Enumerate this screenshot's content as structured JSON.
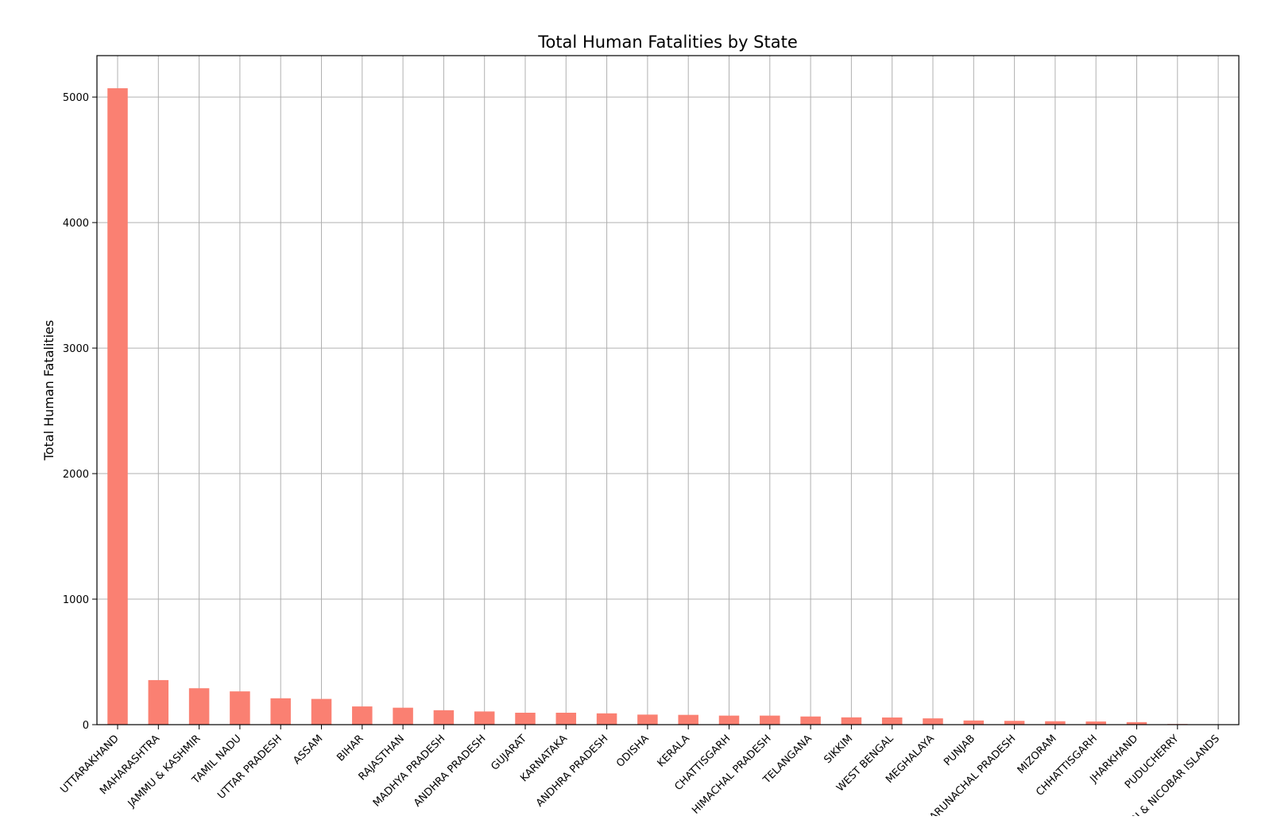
{
  "chart_data": {
    "type": "bar",
    "title": "Total Human Fatalities by State",
    "xlabel": "",
    "ylabel": "Total Human Fatalities",
    "ylim": [
      0,
      5330
    ],
    "yticks": [
      0,
      1000,
      2000,
      3000,
      4000,
      5000
    ],
    "grid": true,
    "bar_color": "#fa8072",
    "categories": [
      "UTTARAKHAND",
      "MAHARASHTRA",
      "JAMMU & KASHMIR",
      "TAMIL NADU",
      "UTTAR PRADESH",
      "ASSAM",
      "BIHAR",
      "RAJASTHAN",
      "MADHYA PRADESH",
      "ANDHRA PRADESH",
      "GUJARAT",
      "KARNATAKA",
      "ANDHRA  PRADESH",
      "ODISHA",
      "KERALA",
      "CHATTISGARH",
      "HIMACHAL PRADESH",
      "TELANGANA",
      "SIKKIM",
      "WEST BENGAL",
      "MEGHALAYA",
      "PUNJAB",
      "ARUNACHAL PRADESH",
      "MIZORAM",
      "CHHATTISGARH",
      "JHARKHAND",
      "PUDUCHERRY",
      "ANDAMAN & NICOBAR ISLANDS"
    ],
    "values": [
      5070,
      355,
      290,
      265,
      210,
      205,
      145,
      135,
      115,
      105,
      95,
      95,
      90,
      80,
      78,
      72,
      72,
      65,
      58,
      57,
      50,
      33,
      30,
      27,
      25,
      20,
      5,
      0
    ]
  }
}
